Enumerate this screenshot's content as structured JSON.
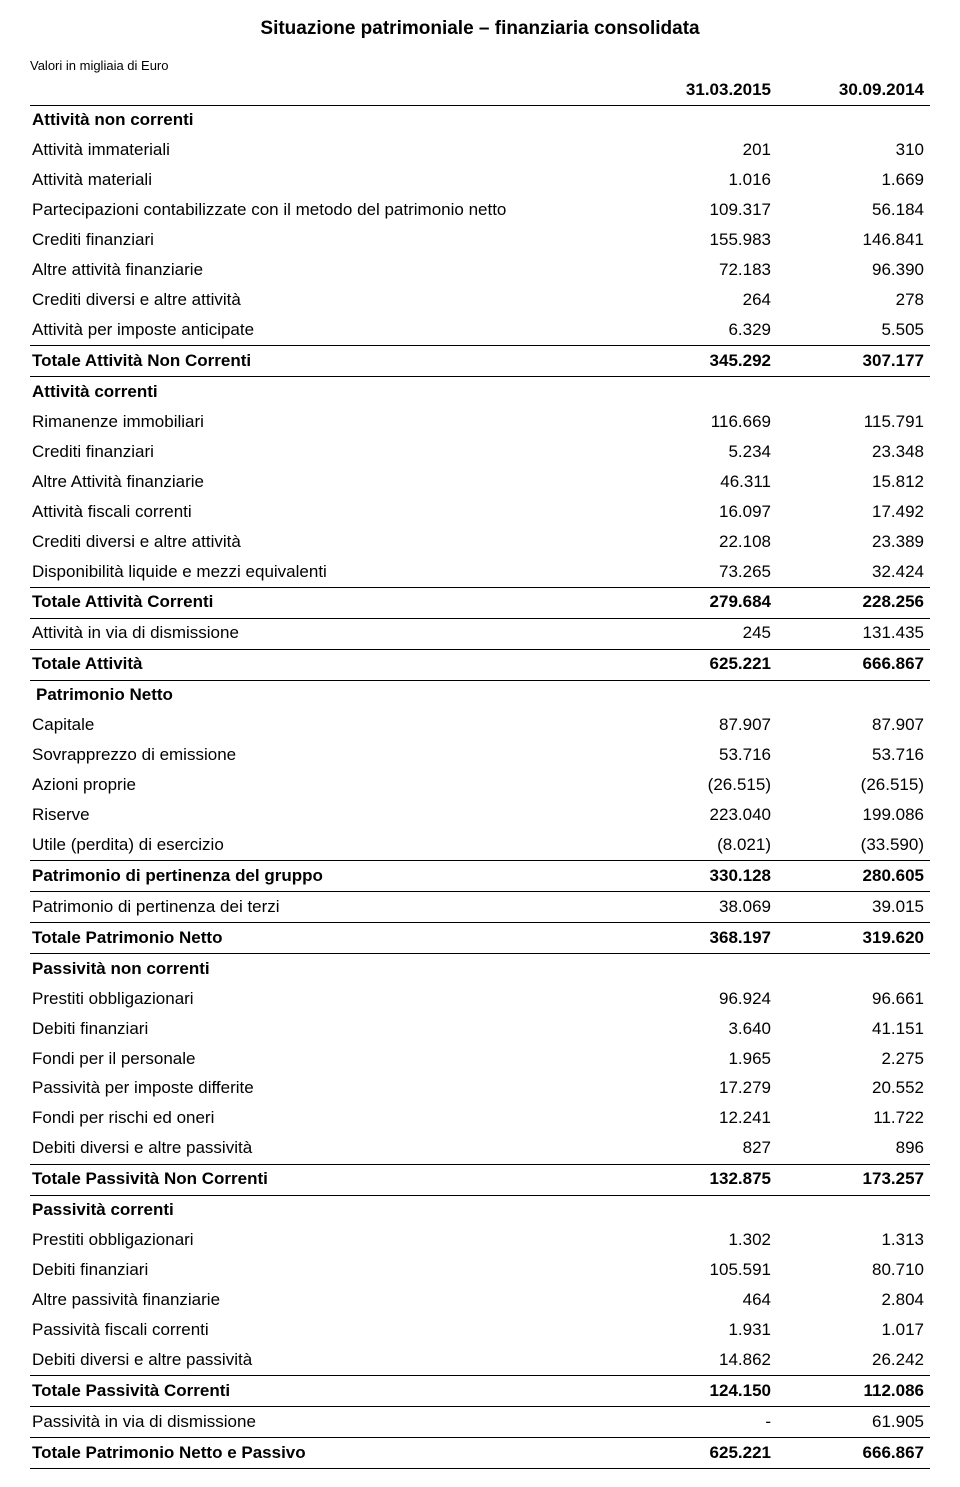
{
  "title": "Situazione patrimoniale – finanziaria consolidata",
  "subtitle": "Valori in migliaia di Euro",
  "header": {
    "col1": "31.03.2015",
    "col2": "30.09.2014"
  },
  "rows": [
    {
      "type": "section",
      "label": "Attività non correnti"
    },
    {
      "type": "data",
      "label": "Attività immateriali",
      "v1": "201",
      "v2": "310"
    },
    {
      "type": "data",
      "label": "Attività materiali",
      "v1": "1.016",
      "v2": "1.669"
    },
    {
      "type": "data",
      "label": "Partecipazioni contabilizzate con il metodo del patrimonio netto",
      "v1": "109.317",
      "v2": "56.184"
    },
    {
      "type": "data",
      "label": "Crediti finanziari",
      "v1": "155.983",
      "v2": "146.841"
    },
    {
      "type": "data",
      "label": "Altre attività finanziarie",
      "v1": "72.183",
      "v2": "96.390"
    },
    {
      "type": "data",
      "label": "Crediti diversi e altre attività",
      "v1": "264",
      "v2": "278"
    },
    {
      "type": "data",
      "label": "Attività per imposte anticipate",
      "v1": "6.329",
      "v2": "5.505",
      "bb": true
    },
    {
      "type": "total",
      "label": "Totale Attività Non Correnti",
      "v1": "345.292",
      "v2": "307.177",
      "bb": true
    },
    {
      "type": "section",
      "label": "Attività correnti"
    },
    {
      "type": "data",
      "label": "Rimanenze immobiliari",
      "v1": "116.669",
      "v2": "115.791"
    },
    {
      "type": "data",
      "label": "Crediti finanziari",
      "v1": "5.234",
      "v2": "23.348"
    },
    {
      "type": "data",
      "label": "Altre Attività finanziarie",
      "v1": "46.311",
      "v2": "15.812"
    },
    {
      "type": "data",
      "label": "Attività fiscali correnti",
      "v1": "16.097",
      "v2": "17.492"
    },
    {
      "type": "data",
      "label": "Crediti diversi e altre attività",
      "v1": "22.108",
      "v2": "23.389"
    },
    {
      "type": "data",
      "label": "Disponibilità liquide e mezzi equivalenti",
      "v1": "73.265",
      "v2": "32.424",
      "bb": true
    },
    {
      "type": "total",
      "label": "Totale Attività Correnti",
      "v1": "279.684",
      "v2": "228.256",
      "bb": true
    },
    {
      "type": "data",
      "label": "Attività in via di dismissione",
      "v1": "245",
      "v2": "131.435",
      "bb": true
    },
    {
      "type": "total",
      "label": "Totale Attività",
      "v1": "625.221",
      "v2": "666.867",
      "bb": true
    },
    {
      "type": "section",
      "label": "Patrimonio Netto",
      "indent": true
    },
    {
      "type": "data",
      "label": "Capitale",
      "v1": "87.907",
      "v2": "87.907"
    },
    {
      "type": "data",
      "label": "Sovrapprezzo di emissione",
      "v1": "53.716",
      "v2": "53.716"
    },
    {
      "type": "data",
      "label": "Azioni proprie",
      "v1": "(26.515)",
      "v2": "(26.515)"
    },
    {
      "type": "data",
      "label": "Riserve",
      "v1": "223.040",
      "v2": "199.086"
    },
    {
      "type": "data",
      "label": "Utile (perdita) di esercizio",
      "v1": "(8.021)",
      "v2": "(33.590)",
      "bb": true
    },
    {
      "type": "total",
      "label": "Patrimonio di pertinenza del gruppo",
      "v1": "330.128",
      "v2": "280.605",
      "bb": true
    },
    {
      "type": "data",
      "label": "Patrimonio di pertinenza dei terzi",
      "v1": "38.069",
      "v2": "39.015",
      "bb": true
    },
    {
      "type": "total",
      "label": "Totale Patrimonio Netto",
      "v1": "368.197",
      "v2": "319.620",
      "bb": true
    },
    {
      "type": "section",
      "label": "Passività non correnti"
    },
    {
      "type": "data",
      "label": "Prestiti obbligazionari",
      "v1": "96.924",
      "v2": "96.661"
    },
    {
      "type": "data",
      "label": "Debiti finanziari",
      "v1": "3.640",
      "v2": "41.151"
    },
    {
      "type": "data",
      "label": "Fondi per il personale",
      "v1": "1.965",
      "v2": "2.275"
    },
    {
      "type": "data",
      "label": "Passività per imposte differite",
      "v1": "17.279",
      "v2": "20.552"
    },
    {
      "type": "data",
      "label": "Fondi per rischi ed oneri",
      "v1": "12.241",
      "v2": "11.722"
    },
    {
      "type": "data",
      "label": "Debiti diversi e altre passività",
      "v1": "827",
      "v2": "896",
      "bb": true
    },
    {
      "type": "total",
      "label": "Totale  Passività Non Correnti",
      "v1": "132.875",
      "v2": "173.257",
      "bb": true
    },
    {
      "type": "section",
      "label": "Passività correnti"
    },
    {
      "type": "data",
      "label": "Prestiti obbligazionari",
      "v1": "1.302",
      "v2": "1.313"
    },
    {
      "type": "data",
      "label": "Debiti finanziari",
      "v1": "105.591",
      "v2": "80.710"
    },
    {
      "type": "data",
      "label": "Altre passività finanziarie",
      "v1": "464",
      "v2": "2.804"
    },
    {
      "type": "data",
      "label": "Passività fiscali correnti",
      "v1": "1.931",
      "v2": "1.017"
    },
    {
      "type": "data",
      "label": "Debiti diversi e altre passività",
      "v1": "14.862",
      "v2": "26.242",
      "bb": true
    },
    {
      "type": "total",
      "label": "Totale Passività Correnti",
      "v1": "124.150",
      "v2": "112.086",
      "bb": true
    },
    {
      "type": "data",
      "label": "Passività in via di dismissione",
      "v1": "-",
      "v2": "61.905",
      "bb": true
    },
    {
      "type": "total",
      "label": "Totale Patrimonio Netto e Passivo",
      "v1": "625.221",
      "v2": "666.867",
      "bb": true
    }
  ]
}
